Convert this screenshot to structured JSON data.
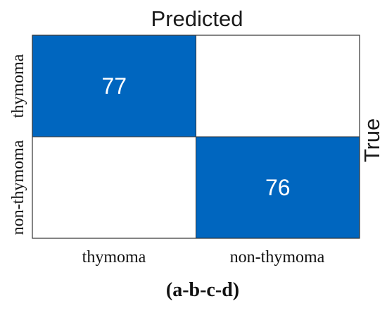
{
  "chart_data": {
    "type": "heatmap",
    "title": "Predicted",
    "ylabel": "True",
    "caption": "(a-b-c-d)",
    "x_categories": [
      "thymoma",
      "non-thymoma"
    ],
    "y_categories": [
      "thymoma",
      "non-thymoma"
    ],
    "matrix": [
      [
        77,
        null
      ],
      [
        null,
        76
      ]
    ],
    "colors": {
      "filled": "#0066bf",
      "empty": "#ffffff",
      "border": "#333333",
      "value_text": "#ffffff"
    }
  }
}
